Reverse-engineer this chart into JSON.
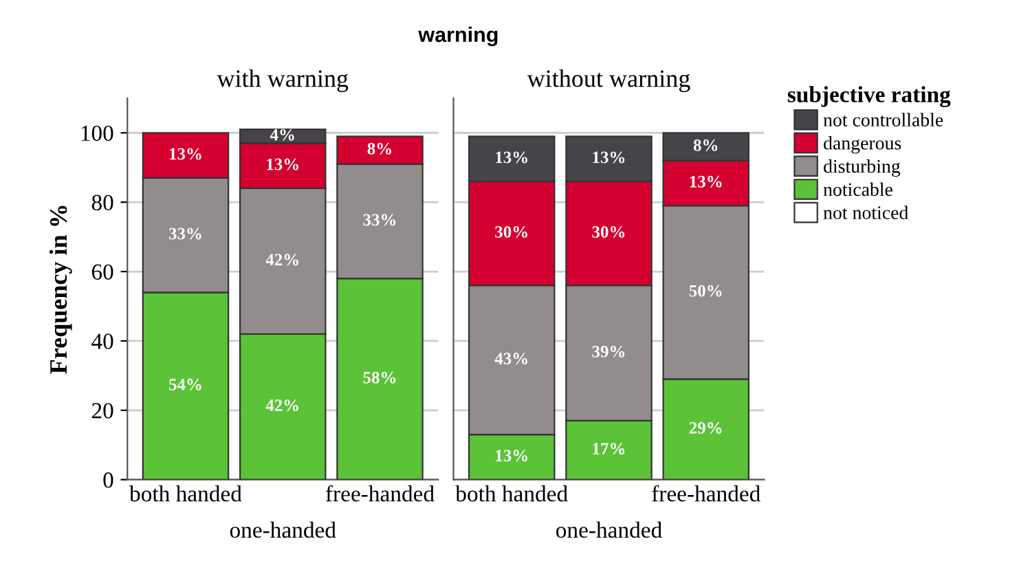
{
  "chart_data": [
    {
      "type": "bar",
      "stacked": true,
      "title": "with warning",
      "annotations": [
        "warning"
      ],
      "ylabel": "Frequency in %",
      "categories": [
        "both handed",
        "one-handed",
        "free-handed"
      ],
      "ylim": [
        0,
        110
      ],
      "yticks": [
        0,
        20,
        40,
        60,
        80,
        100
      ],
      "grid": "y",
      "series": [
        {
          "color": "#ffffff",
          "values": [
            null,
            null,
            null
          ],
          "value_labels": [
            null,
            null,
            null
          ]
        },
        {
          "color": "#5cc238",
          "values": [
            54,
            42,
            58
          ],
          "value_labels": [
            "54%",
            "42%",
            "58%"
          ]
        },
        {
          "color": "#928c8c",
          "values": [
            33,
            42,
            33
          ],
          "value_labels": [
            "33%",
            "42%",
            "33%"
          ]
        },
        {
          "color": "#d40030",
          "values": [
            13,
            13,
            8
          ],
          "value_labels": [
            "13%",
            "13%",
            "8%"
          ]
        },
        {
          "color": "#434548",
          "values": [
            null,
            4,
            null
          ],
          "value_labels": [
            null,
            "4%",
            null
          ]
        }
      ]
    },
    {
      "type": "bar",
      "stacked": true,
      "title": "without warning",
      "legend_title": "subjective rating",
      "categories": [
        "both handed",
        "one-handed",
        "free-handed"
      ],
      "ylim": [
        0,
        110
      ],
      "yticks": [
        0,
        20,
        40,
        60,
        80,
        100
      ],
      "grid": "y",
      "legend": "right",
      "tick_labels": "x",
      "series": [
        {
          "name": "not noticed",
          "color": "#ffffff",
          "values": [
            null,
            null,
            null
          ],
          "value_labels": [
            null,
            null,
            null
          ]
        },
        {
          "name": "noticable",
          "color": "#5cc238",
          "values": [
            13,
            17,
            29
          ],
          "value_labels": [
            "13%",
            "17%",
            "29%"
          ]
        },
        {
          "name": "disturbing",
          "color": "#928c8c",
          "values": [
            43,
            39,
            50
          ],
          "value_labels": [
            "43%",
            "39%",
            "50%"
          ]
        },
        {
          "name": "dangerous",
          "color": "#d40030",
          "values": [
            30,
            30,
            13
          ],
          "value_labels": [
            "30%",
            "30%",
            "13%"
          ]
        },
        {
          "name": "not controllable",
          "color": "#434548",
          "values": [
            13,
            13,
            8
          ],
          "value_labels": [
            "13%",
            "13%",
            "8%"
          ]
        }
      ]
    }
  ]
}
